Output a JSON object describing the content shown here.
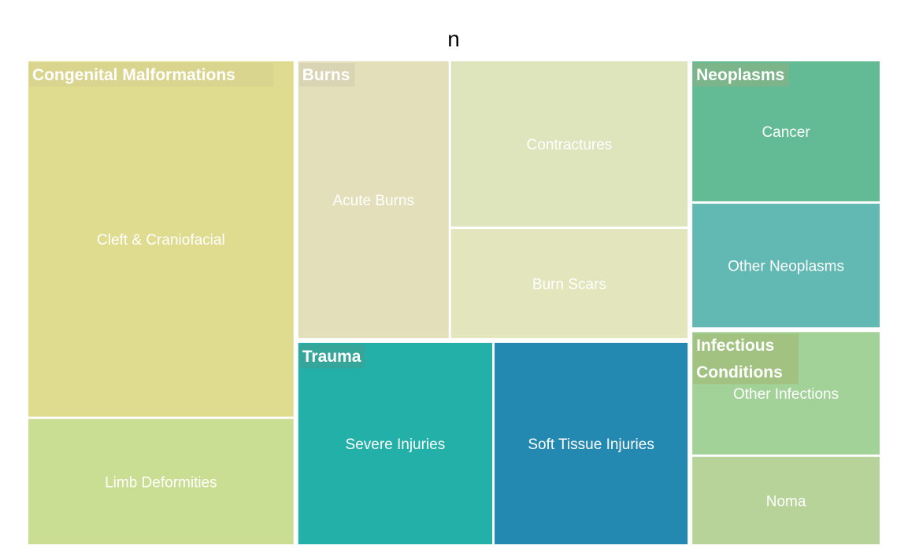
{
  "chart_data": {
    "type": "treemap",
    "title": "n",
    "groups": [
      {
        "name": "Congenital Malformations",
        "label_color": "#d9d58f",
        "children": [
          {
            "name": "Cleft & Craniofacial",
            "value": 1460,
            "color": "#dfdb8f"
          },
          {
            "name": "Limb Deformities",
            "value": 515,
            "color": "#c9de92"
          }
        ]
      },
      {
        "name": "Burns",
        "label_color": "#d8d4b4",
        "children": [
          {
            "name": "Acute Burns",
            "value": 668,
            "color": "#e3dfbb"
          },
          {
            "name": "Contractures",
            "value": 633,
            "color": "#dee5bc"
          },
          {
            "name": "Burn Scars",
            "value": 418,
            "color": "#e3e5bc"
          }
        ]
      },
      {
        "name": "Trauma",
        "label_color": "#36a59a",
        "children": [
          {
            "name": "Severe Injuries",
            "value": 627,
            "color": "#23b0a8"
          },
          {
            "name": "Soft Tissue Injuries",
            "value": 624,
            "color": "#2389b0"
          }
        ]
      },
      {
        "name": "Neoplasms",
        "label_color": "#7cb589",
        "children": [
          {
            "name": "Cancer",
            "value": 412,
            "color": "#63bb96"
          },
          {
            "name": "Other Neoplasms",
            "value": 364,
            "color": "#62b8b2"
          }
        ]
      },
      {
        "name": "Infectious Conditions",
        "label_color": "#a1c281",
        "children": [
          {
            "name": "Other Infections",
            "value": 361,
            "color": "#a2d297"
          },
          {
            "name": "Noma",
            "value": 258,
            "color": "#b8d399"
          }
        ]
      }
    ]
  }
}
